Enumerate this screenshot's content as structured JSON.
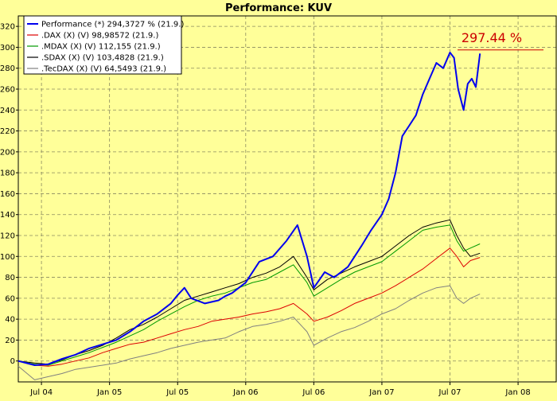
{
  "chart_data": {
    "type": "line",
    "title": "Performance: KUV",
    "xlabel": "",
    "ylabel": "",
    "ylim": [
      -20,
      330
    ],
    "yticks": [
      0,
      20,
      40,
      60,
      80,
      100,
      120,
      140,
      160,
      180,
      200,
      220,
      240,
      260,
      280,
      300,
      320
    ],
    "xlim": [
      2004.33,
      2008.28
    ],
    "xticks": [
      {
        "label": "Jul 04",
        "x": 2004.5
      },
      {
        "label": "Jan 05",
        "x": 2005.0
      },
      {
        "label": "Jul 05",
        "x": 2005.5
      },
      {
        "label": "Jan 06",
        "x": 2006.0
      },
      {
        "label": "Jul 06",
        "x": 2006.5
      },
      {
        "label": "Jan 07",
        "x": 2007.0
      },
      {
        "label": "Jul 07",
        "x": 2007.5
      },
      {
        "label": "Jan 08",
        "x": 2008.0
      }
    ],
    "grid": true,
    "legend_position": "top-left",
    "annotation": {
      "text": "297.44 %",
      "value": 297.44,
      "color": "#cc0000"
    },
    "series": [
      {
        "name": "Performance (*) 294,3727 % (21.9.)",
        "color": "#0000ee",
        "x": [
          2004.33,
          2004.45,
          2004.55,
          2004.65,
          2004.75,
          2004.85,
          2004.95,
          2005.05,
          2005.15,
          2005.25,
          2005.35,
          2005.45,
          2005.5,
          2005.55,
          2005.6,
          2005.7,
          2005.8,
          2005.85,
          2005.9,
          2005.95,
          2006.0,
          2006.1,
          2006.2,
          2006.3,
          2006.38,
          2006.45,
          2006.5,
          2006.58,
          2006.65,
          2006.75,
          2006.85,
          2006.92,
          2007.0,
          2007.05,
          2007.1,
          2007.15,
          2007.2,
          2007.25,
          2007.3,
          2007.35,
          2007.4,
          2007.45,
          2007.5,
          2007.53,
          2007.56,
          2007.6,
          2007.63,
          2007.66,
          2007.69,
          2007.72
        ],
        "y": [
          0,
          -4,
          -3,
          2,
          6,
          12,
          16,
          20,
          28,
          38,
          45,
          55,
          63,
          70,
          60,
          55,
          58,
          62,
          65,
          70,
          75,
          95,
          100,
          115,
          130,
          100,
          70,
          85,
          80,
          90,
          110,
          125,
          140,
          155,
          180,
          215,
          225,
          235,
          255,
          270,
          285,
          280,
          295,
          290,
          260,
          240,
          265,
          270,
          262,
          294
        ]
      },
      {
        "name": ".DAX (X) (V) 98,98572 (21.9.)",
        "color": "#dd0000",
        "x": [
          2004.33,
          2004.45,
          2004.55,
          2004.65,
          2004.75,
          2004.85,
          2004.95,
          2005.05,
          2005.15,
          2005.25,
          2005.35,
          2005.45,
          2005.55,
          2005.65,
          2005.75,
          2005.85,
          2005.95,
          2006.05,
          2006.15,
          2006.25,
          2006.35,
          2006.45,
          2006.5,
          2006.6,
          2006.7,
          2006.8,
          2006.9,
          2007.0,
          2007.1,
          2007.2,
          2007.3,
          2007.4,
          2007.5,
          2007.55,
          2007.6,
          2007.65,
          2007.72
        ],
        "y": [
          0,
          -4,
          -5,
          -3,
          0,
          3,
          8,
          12,
          16,
          18,
          22,
          26,
          30,
          33,
          38,
          40,
          42,
          45,
          47,
          50,
          55,
          45,
          38,
          42,
          48,
          55,
          60,
          65,
          72,
          80,
          88,
          98,
          108,
          100,
          90,
          96,
          99
        ]
      },
      {
        "name": ".MDAX (X) (V) 112,155 (21.9.)",
        "color": "#009900",
        "x": [
          2004.33,
          2004.45,
          2004.55,
          2004.65,
          2004.75,
          2004.85,
          2004.95,
          2005.05,
          2005.15,
          2005.25,
          2005.35,
          2005.45,
          2005.55,
          2005.65,
          2005.75,
          2005.85,
          2005.95,
          2006.05,
          2006.15,
          2006.25,
          2006.35,
          2006.45,
          2006.5,
          2006.6,
          2006.7,
          2006.8,
          2006.9,
          2007.0,
          2007.1,
          2007.2,
          2007.3,
          2007.4,
          2007.5,
          2007.55,
          2007.6,
          2007.65,
          2007.72
        ],
        "y": [
          0,
          -3,
          -4,
          0,
          4,
          8,
          13,
          18,
          24,
          30,
          38,
          45,
          52,
          58,
          62,
          65,
          70,
          75,
          78,
          85,
          92,
          75,
          62,
          70,
          78,
          85,
          90,
          95,
          105,
          115,
          125,
          128,
          130,
          115,
          105,
          108,
          112
        ]
      },
      {
        "name": ".SDAX (X) (V) 103,4828 (21.9.)",
        "color": "#000000",
        "x": [
          2004.33,
          2004.45,
          2004.55,
          2004.65,
          2004.75,
          2004.85,
          2004.95,
          2005.05,
          2005.15,
          2005.25,
          2005.35,
          2005.45,
          2005.55,
          2005.65,
          2005.75,
          2005.85,
          2005.95,
          2006.05,
          2006.15,
          2006.25,
          2006.35,
          2006.45,
          2006.5,
          2006.6,
          2006.7,
          2006.8,
          2006.9,
          2007.0,
          2007.1,
          2007.2,
          2007.3,
          2007.4,
          2007.5,
          2007.55,
          2007.6,
          2007.65,
          2007.72
        ],
        "y": [
          0,
          -2,
          -3,
          1,
          6,
          10,
          15,
          22,
          30,
          35,
          42,
          50,
          58,
          62,
          66,
          70,
          74,
          80,
          84,
          90,
          100,
          80,
          68,
          78,
          84,
          90,
          95,
          100,
          110,
          120,
          128,
          132,
          135,
          120,
          108,
          100,
          103
        ]
      },
      {
        "name": ".TecDAX (X) (V) 64,5493 (21.9.)",
        "color": "#808080",
        "x": [
          2004.33,
          2004.45,
          2004.55,
          2004.65,
          2004.75,
          2004.85,
          2004.95,
          2005.05,
          2005.15,
          2005.25,
          2005.35,
          2005.45,
          2005.55,
          2005.65,
          2005.75,
          2005.85,
          2005.95,
          2006.05,
          2006.15,
          2006.25,
          2006.35,
          2006.45,
          2006.5,
          2006.6,
          2006.7,
          2006.8,
          2006.9,
          2007.0,
          2007.1,
          2007.2,
          2007.3,
          2007.4,
          2007.5,
          2007.55,
          2007.6,
          2007.65,
          2007.72
        ],
        "y": [
          -5,
          -18,
          -15,
          -12,
          -8,
          -6,
          -4,
          -2,
          2,
          5,
          8,
          12,
          15,
          18,
          20,
          22,
          28,
          33,
          35,
          38,
          42,
          28,
          15,
          22,
          28,
          32,
          38,
          45,
          50,
          58,
          65,
          70,
          72,
          60,
          55,
          60,
          64
        ]
      }
    ]
  }
}
